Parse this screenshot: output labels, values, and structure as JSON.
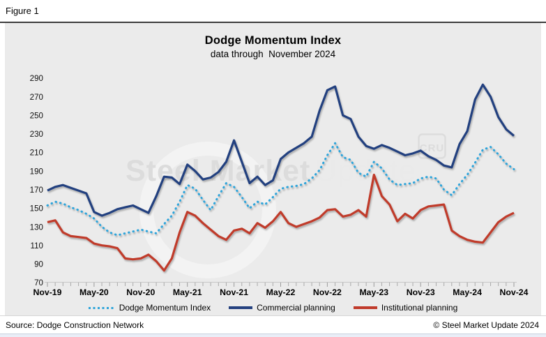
{
  "figure_label": "Figure 1",
  "footer": {
    "source": "Source: Dodge Construction Network",
    "copyright": "© Steel Market Update 2024"
  },
  "watermark": {
    "text_bold": "Steel Market",
    "text_light": "Update",
    "cru_label": "CRU"
  },
  "colors": {
    "dmi_line": "#2ea4da",
    "commercial_line": "#24417f",
    "institutional_line": "#c03a2b",
    "canvas_bg": "#ebebeb",
    "page_bg": "#ffffff",
    "rule": "#3c3c3c",
    "axis_line": "#c6c6c6",
    "tick": "#a9a9a9",
    "label_text": "#111111",
    "watermark_text": "#dcdcdc",
    "watermark_light": "#eaeaea",
    "watermark_ring": "#f3f3f3"
  },
  "chart_data": {
    "type": "line",
    "title": "Dodge Momentum Index",
    "subtitle": "data through  November 2024",
    "x_interval": "monthly",
    "x_start_label": "Nov-19",
    "x_end_label": "Nov-24",
    "x_tick_labels": [
      "Nov-19",
      "May-20",
      "Nov-20",
      "May-21",
      "Nov-21",
      "May-22",
      "Nov-22",
      "May-23",
      "Nov-23",
      "May-24",
      "Nov-24"
    ],
    "x_tick_every": 6,
    "points_per_series": 61,
    "ylim": [
      70,
      290
    ],
    "ytick_step": 20,
    "grid": false,
    "legend_position": "bottom",
    "series": [
      {
        "name": "Dodge Momentum Index",
        "style": "dotted",
        "color": "#2ea4da",
        "values": [
          153,
          157,
          155,
          151,
          148,
          144,
          139,
          130,
          124,
          121,
          123,
          125,
          127,
          125,
          123,
          133,
          142,
          157,
          175,
          171,
          159,
          148,
          163,
          177,
          173,
          162,
          150,
          157,
          154,
          162,
          171,
          173,
          174,
          176,
          182,
          191,
          207,
          220,
          205,
          202,
          188,
          184,
          200,
          193,
          181,
          175,
          176,
          177,
          182,
          184,
          182,
          170,
          164,
          176,
          186,
          199,
          213,
          216,
          208,
          198,
          192
        ]
      },
      {
        "name": "Commercial planning",
        "style": "solid",
        "color": "#24417f",
        "values": [
          169,
          173,
          175,
          172,
          169,
          166,
          146,
          142,
          145,
          149,
          151,
          153,
          149,
          145,
          163,
          184,
          183,
          176,
          197,
          190,
          181,
          183,
          189,
          200,
          223,
          200,
          177,
          184,
          175,
          180,
          203,
          210,
          215,
          220,
          227,
          255,
          277,
          281,
          250,
          246,
          227,
          217,
          214,
          218,
          215,
          211,
          207,
          209,
          212,
          206,
          202,
          196,
          194,
          219,
          233,
          267,
          283,
          270,
          248,
          235,
          228
        ]
      },
      {
        "name": "Institutional planning",
        "style": "solid",
        "color": "#c03a2b",
        "values": [
          135,
          137,
          124,
          120,
          119,
          118,
          112,
          110,
          109,
          107,
          96,
          95,
          96,
          100,
          93,
          83,
          96,
          124,
          146,
          142,
          134,
          127,
          120,
          116,
          126,
          128,
          123,
          134,
          129,
          136,
          146,
          134,
          130,
          133,
          136,
          140,
          148,
          149,
          141,
          143,
          148,
          141,
          186,
          163,
          154,
          136,
          144,
          139,
          148,
          152,
          153,
          154,
          126,
          120,
          116,
          114,
          113,
          124,
          135,
          141,
          145
        ]
      }
    ]
  }
}
